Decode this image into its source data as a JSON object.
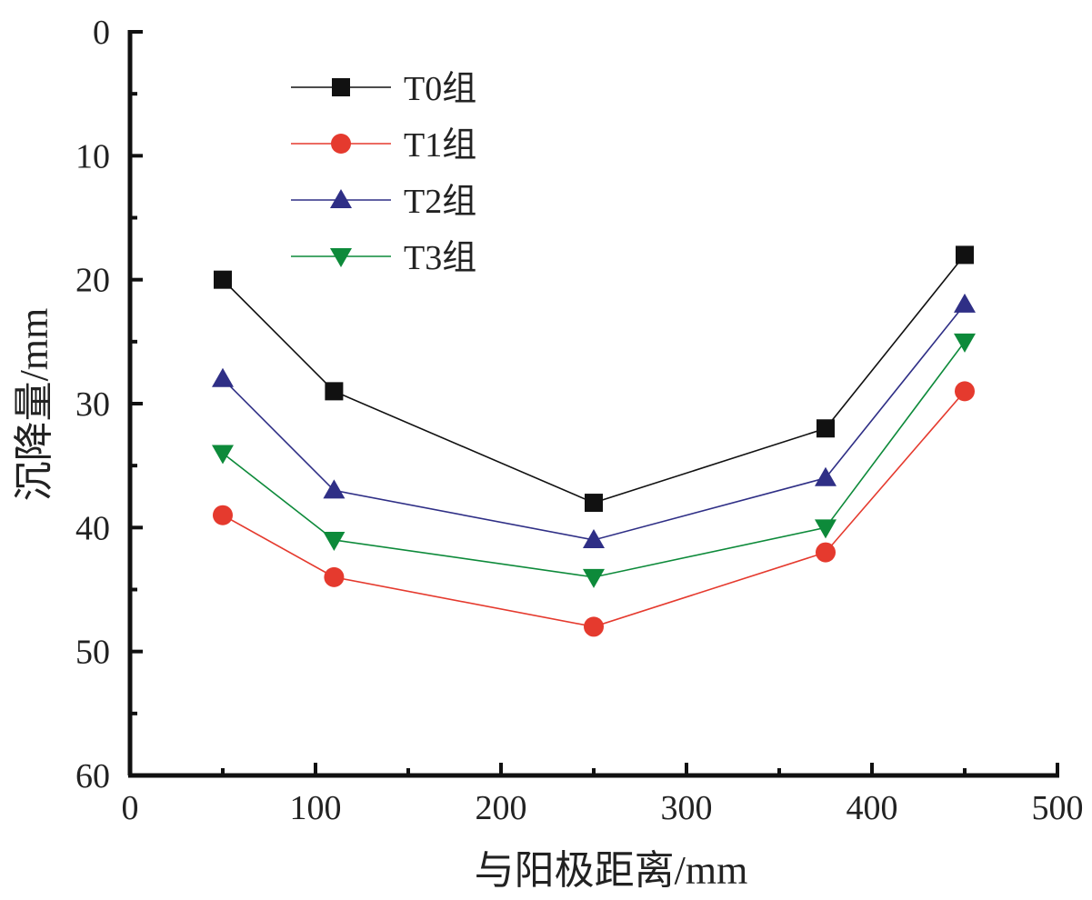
{
  "chart_data": {
    "type": "line",
    "title": "",
    "xlabel": "与阳极距离/mm",
    "ylabel": "沉降量/mm",
    "xlim": [
      0,
      500
    ],
    "ylim": [
      0,
      60
    ],
    "y_inverted": true,
    "xticks": [
      0,
      100,
      200,
      300,
      400,
      500
    ],
    "yticks": [
      0,
      10,
      20,
      30,
      40,
      50,
      60
    ],
    "grid": false,
    "legend_position": "top-left",
    "x": [
      50,
      110,
      250,
      375,
      450
    ],
    "series": [
      {
        "name": "T0组",
        "color": "#111111",
        "marker": "square",
        "values": [
          20,
          29,
          38,
          32,
          18
        ]
      },
      {
        "name": "T1组",
        "color": "#e53a2e",
        "marker": "circle",
        "values": [
          39,
          44,
          48,
          42,
          29
        ]
      },
      {
        "name": "T2组",
        "color": "#2f2f86",
        "marker": "triangle-up",
        "values": [
          28,
          37,
          41,
          36,
          22
        ]
      },
      {
        "name": "T3组",
        "color": "#0d8a3a",
        "marker": "triangle-down",
        "values": [
          34,
          41,
          44,
          40,
          25
        ]
      }
    ]
  }
}
